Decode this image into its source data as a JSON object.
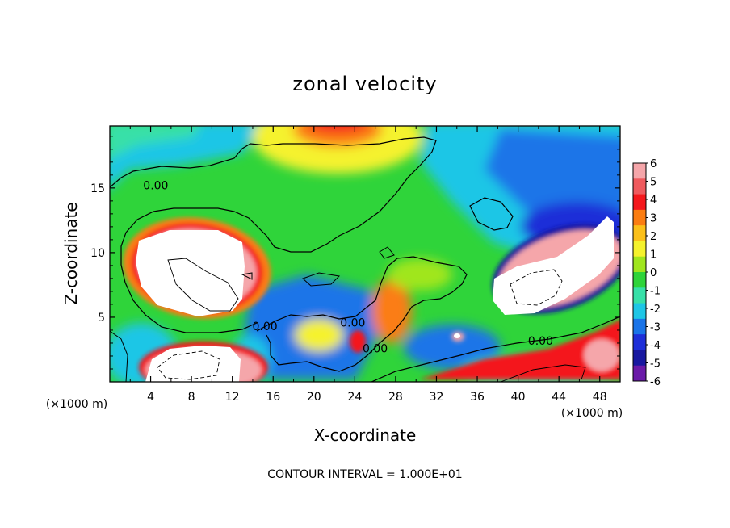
{
  "chart_data": {
    "type": "heatmap",
    "title": "zonal velocity",
    "xlabel": "X-coordinate",
    "ylabel": "Z-coordinate",
    "x_unit": "(×1000 m)",
    "x_unit_right": "(×1000 m)",
    "footer": "CONTOUR INTERVAL = 1.000E+01",
    "xlim": [
      0,
      50
    ],
    "ylim": [
      0,
      19.8
    ],
    "x_ticks": [
      4,
      8,
      12,
      16,
      20,
      24,
      28,
      32,
      36,
      40,
      44,
      48
    ],
    "y_ticks": [
      5,
      10,
      15
    ],
    "colorbar": {
      "min": -6,
      "max": 6,
      "levels": [
        6,
        5,
        4,
        3,
        2,
        1,
        0,
        -1,
        -2,
        -3,
        -4,
        -5,
        -6
      ],
      "colors": [
        "#f5a6aa",
        "#ef5a5e",
        "#f4181c",
        "#fb7d12",
        "#fbc01a",
        "#f5f22d",
        "#a0e61e",
        "#2fd43a",
        "#37e0a8",
        "#1ec6e6",
        "#1a74e8",
        "#1e2fd8",
        "#1818a0",
        "#6a1aa8"
      ]
    },
    "contour_labels": [
      {
        "text": "0.00",
        "x": 4.5,
        "y": 15.2
      },
      {
        "text": "0.00",
        "x": 15.2,
        "y": 4.3
      },
      {
        "text": "0.00",
        "x": 23.8,
        "y": 4.6
      },
      {
        "text": "0.00",
        "x": 26.0,
        "y": 2.6
      },
      {
        "text": "0.00",
        "x": 42.2,
        "y": 3.2
      }
    ],
    "features": [
      {
        "kind": "max",
        "level": 6,
        "cx": 8.0,
        "cy": 8.8,
        "rx": 6.0,
        "ry": 3.1,
        "rotate_deg": 8
      },
      {
        "kind": "max",
        "level": 6,
        "cx": 41.8,
        "cy": 8.8,
        "rx": 6.6,
        "ry": 2.8,
        "rotate_deg": -20
      },
      {
        "kind": "max",
        "level": 6,
        "cx": 9.2,
        "cy": 1.4,
        "rx": 5.8,
        "ry": 1.5,
        "rotate_deg": 0
      },
      {
        "kind": "max",
        "level": 6,
        "cx": 47.6,
        "cy": 1.9,
        "rx": 1.4,
        "ry": 1.0,
        "rotate_deg": 0
      },
      {
        "kind": "max",
        "level": 3,
        "cx": 22.5,
        "cy": 18.6,
        "rx": 5.0,
        "ry": 1.8,
        "rotate_deg": 0
      },
      {
        "kind": "min",
        "level": -5,
        "cx": 44.5,
        "cy": 11.8,
        "rx": 4.5,
        "ry": 2.0,
        "rotate_deg": -15
      },
      {
        "kind": "min",
        "level": -3,
        "cx": 30.0,
        "cy": 2.6,
        "rx": 3.0,
        "ry": 1.6,
        "rotate_deg": 0
      }
    ]
  }
}
